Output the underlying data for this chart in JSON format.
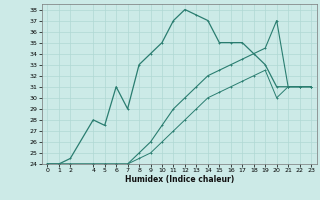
{
  "xlabel": "Humidex (Indice chaleur)",
  "ylabel": "",
  "xlim": [
    -0.5,
    23.5
  ],
  "ylim": [
    24,
    38.5
  ],
  "yticks": [
    24,
    25,
    26,
    27,
    28,
    29,
    30,
    31,
    32,
    33,
    34,
    35,
    36,
    37,
    38
  ],
  "xticks": [
    0,
    1,
    2,
    4,
    5,
    6,
    7,
    8,
    9,
    10,
    11,
    12,
    13,
    14,
    15,
    16,
    17,
    18,
    19,
    20,
    21,
    22,
    23
  ],
  "background_color": "#cceae7",
  "grid_color": "#b0d8d4",
  "line_color": "#2a7d70",
  "series": [
    {
      "x": [
        0,
        1,
        2,
        4,
        5,
        6,
        7,
        8,
        9,
        10,
        11,
        12,
        13,
        14,
        15,
        16,
        17,
        19,
        20,
        21,
        22,
        23
      ],
      "y": [
        24,
        24,
        24.5,
        28,
        27.5,
        31,
        29,
        33,
        34,
        35,
        37,
        38,
        37.5,
        37,
        35,
        35,
        35,
        33,
        31,
        31,
        31,
        31
      ]
    },
    {
      "x": [
        0,
        1,
        2,
        4,
        5,
        6,
        7,
        8,
        9,
        10,
        11,
        12,
        13,
        14,
        15,
        16,
        17,
        18,
        19,
        20,
        21,
        22,
        23
      ],
      "y": [
        24,
        24,
        24,
        24,
        24,
        24,
        24,
        25,
        26,
        27.5,
        29,
        30,
        31,
        32,
        32.5,
        33,
        33.5,
        34,
        34.5,
        37,
        31,
        31,
        31
      ]
    },
    {
      "x": [
        0,
        1,
        2,
        4,
        5,
        6,
        7,
        8,
        9,
        10,
        11,
        12,
        13,
        14,
        15,
        16,
        17,
        18,
        19,
        20,
        21,
        22,
        23
      ],
      "y": [
        24,
        24,
        24,
        24,
        24,
        24,
        24,
        24.5,
        25,
        26,
        27,
        28,
        29,
        30,
        30.5,
        31,
        31.5,
        32,
        32.5,
        30,
        31,
        31,
        31
      ]
    }
  ]
}
